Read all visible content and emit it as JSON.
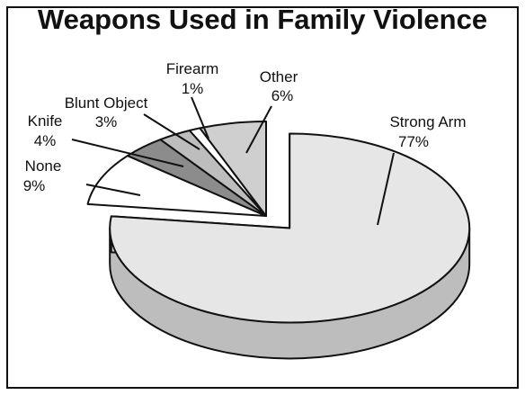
{
  "chart_data": {
    "type": "pie",
    "title": "Weapons Used in Family Violence",
    "slices": [
      {
        "label": "Strong Arm",
        "value": 77,
        "value_label": "77%",
        "color": "#e6e6e6",
        "exploded": true
      },
      {
        "label": "None",
        "value": 9,
        "value_label": "9%",
        "color": "#ffffff",
        "exploded": false
      },
      {
        "label": "Knife",
        "value": 4,
        "value_label": "4%",
        "color": "#8c8c8c",
        "exploded": false
      },
      {
        "label": "Blunt Object",
        "value": 3,
        "value_label": "3%",
        "color": "#bdbdbd",
        "exploded": false
      },
      {
        "label": "Firearm",
        "value": 1,
        "value_label": "1%",
        "color": "#ffffff",
        "exploded": false
      },
      {
        "label": "Other",
        "value": 6,
        "value_label": "6%",
        "color": "#cfcfcf",
        "exploded": false
      }
    ]
  }
}
